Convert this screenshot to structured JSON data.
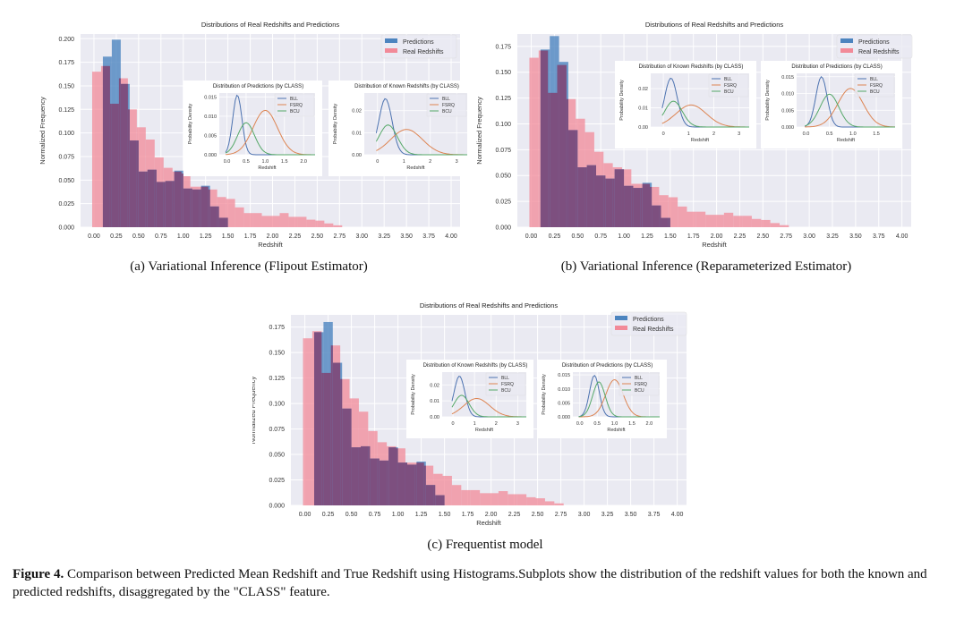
{
  "figure": {
    "label": "Figure 4.",
    "caption": "Comparison between Predicted Mean Redshift and True Redshift using Histograms.Subplots show the distribution of the redshift values for both the known and predicted redshifts, disaggregated by the \"CLASS\" feature."
  },
  "colors": {
    "predictions": "#4c84bf",
    "real": "#f28a98",
    "overlap": "#7d4f7f",
    "bll": "#4c72b0",
    "fsrq": "#dd8452",
    "bcu": "#55a868",
    "axes_bg": "#eaeaf2"
  },
  "chart_data": [
    {
      "type": "bar",
      "subcaption": "(a) Variational Inference (Flipout Estimator)",
      "title": "Distributions of Real Redshifts and Predictions",
      "xlabel": "Redshift",
      "ylabel": "Normalized Frequency",
      "xlim": [
        -0.15,
        4.1
      ],
      "ylim": [
        0,
        0.205
      ],
      "xticks": [
        "0.00",
        "0.25",
        "0.50",
        "0.75",
        "1.00",
        "1.25",
        "1.50",
        "1.75",
        "2.00",
        "2.25",
        "2.50",
        "2.75",
        "3.00",
        "3.25",
        "3.50",
        "3.75",
        "4.00"
      ],
      "yticks": [
        "0.000",
        "0.025",
        "0.050",
        "0.075",
        "0.100",
        "0.125",
        "0.150",
        "0.175",
        "0.200"
      ],
      "legend": [
        "Predictions",
        "Real Redshifts"
      ],
      "legend_position": "top-right",
      "bin_width": 0.1,
      "predictions": {
        "start": 0.0,
        "values": [
          0.0,
          0.181,
          0.199,
          0.152,
          0.092,
          0.059,
          0.061,
          0.048,
          0.049,
          0.06,
          0.041,
          0.04,
          0.044,
          0.022,
          0.01
        ]
      },
      "real": {
        "start": -0.02,
        "values": [
          0.165,
          0.171,
          0.131,
          0.158,
          0.125,
          0.106,
          0.093,
          0.074,
          0.063,
          0.059,
          0.057,
          0.043,
          0.043,
          0.04,
          0.032,
          0.03,
          0.021,
          0.015,
          0.015,
          0.012,
          0.012,
          0.015,
          0.011,
          0.011,
          0.008,
          0.007,
          0.004,
          0.002
        ]
      },
      "insets": [
        {
          "title": "Distribution of Predictions (by CLASS)",
          "xlabel": "Redshift",
          "ylabel": "Probability Density",
          "xlim": [
            -0.2,
            2.3
          ],
          "ylim": [
            0,
            0.016
          ],
          "xticks": [
            "0.0",
            "0.5",
            "1.0",
            "1.5",
            "2.0"
          ],
          "yticks": [
            "0.000",
            "0.005",
            "0.010",
            "0.015"
          ],
          "legend": [
            "BLL",
            "FSRQ",
            "BCU"
          ],
          "curves": [
            {
              "mu": 0.27,
              "sigma": 0.12,
              "peak": 0.0155
            },
            {
              "mu": 1.0,
              "sigma": 0.32,
              "peak": 0.0115
            },
            {
              "mu": 0.5,
              "sigma": 0.22,
              "peak": 0.0083
            }
          ]
        },
        {
          "title": "Distribution of Known Redshifts (by CLASS)",
          "xlabel": "Redshift",
          "ylabel": "Probability Density",
          "xlim": [
            -0.5,
            3.4
          ],
          "ylim": [
            0,
            0.028
          ],
          "xticks": [
            "0",
            "1",
            "2",
            "3"
          ],
          "yticks": [
            "0.00",
            "0.01",
            "0.02"
          ],
          "legend": [
            "BLL",
            "FSRQ",
            "BCU"
          ],
          "curves": [
            {
              "mu": 0.3,
              "sigma": 0.25,
              "peak": 0.0255
            },
            {
              "mu": 1.1,
              "sigma": 0.6,
              "peak": 0.0115
            },
            {
              "mu": 0.4,
              "sigma": 0.35,
              "peak": 0.0135
            }
          ]
        }
      ]
    },
    {
      "type": "bar",
      "subcaption": "(b) Variational Inference (Reparameterized Estimator)",
      "title": "Distributions of Real Redshifts and Predictions",
      "xlabel": "Redshift",
      "ylabel": "Normalized Frequency",
      "xlim": [
        -0.15,
        4.1
      ],
      "ylim": [
        0,
        0.187
      ],
      "xticks": [
        "0.00",
        "0.25",
        "0.50",
        "0.75",
        "1.00",
        "1.25",
        "1.50",
        "1.75",
        "2.00",
        "2.25",
        "2.50",
        "2.75",
        "3.00",
        "3.25",
        "3.50",
        "3.75",
        "4.00"
      ],
      "yticks": [
        "0.000",
        "0.025",
        "0.050",
        "0.075",
        "0.100",
        "0.125",
        "0.150",
        "0.175"
      ],
      "legend": [
        "Predictions",
        "Real Redshifts"
      ],
      "legend_position": "top-right",
      "bin_width": 0.1,
      "predictions": {
        "start": 0.0,
        "values": [
          0.0,
          0.172,
          0.185,
          0.16,
          0.094,
          0.058,
          0.06,
          0.05,
          0.047,
          0.056,
          0.04,
          0.038,
          0.043,
          0.021,
          0.009
        ]
      },
      "real": {
        "start": -0.02,
        "values": [
          0.164,
          0.171,
          0.13,
          0.157,
          0.124,
          0.105,
          0.092,
          0.073,
          0.062,
          0.058,
          0.056,
          0.042,
          0.042,
          0.039,
          0.031,
          0.029,
          0.02,
          0.015,
          0.015,
          0.012,
          0.012,
          0.014,
          0.011,
          0.011,
          0.008,
          0.007,
          0.004,
          0.002
        ]
      },
      "insets": [
        {
          "title": "Distribution of Known Redshifts (by CLASS)",
          "xlabel": "Redshift",
          "ylabel": "Probability Density",
          "xlim": [
            -0.5,
            3.4
          ],
          "ylim": [
            0,
            0.028
          ],
          "xticks": [
            "0",
            "1",
            "2",
            "3"
          ],
          "yticks": [
            "0.00",
            "0.01",
            "0.02"
          ],
          "legend": [
            "BLL",
            "FSRQ",
            "BCU"
          ],
          "curves": [
            {
              "mu": 0.3,
              "sigma": 0.25,
              "peak": 0.0255
            },
            {
              "mu": 1.1,
              "sigma": 0.6,
              "peak": 0.0115
            },
            {
              "mu": 0.4,
              "sigma": 0.35,
              "peak": 0.0135
            }
          ]
        },
        {
          "title": "Distribution of Predictions (by CLASS)",
          "xlabel": "Redshift",
          "ylabel": "Probability Density",
          "xlim": [
            -0.2,
            1.9
          ],
          "ylim": [
            0,
            0.016
          ],
          "xticks": [
            "0.0",
            "0.5",
            "1.0",
            "1.5"
          ],
          "yticks": [
            "0.000",
            "0.005",
            "0.010",
            "0.015"
          ],
          "legend": [
            "BLL",
            "FSRQ",
            "BCU"
          ],
          "curves": [
            {
              "mu": 0.33,
              "sigma": 0.12,
              "peak": 0.015
            },
            {
              "mu": 0.95,
              "sigma": 0.27,
              "peak": 0.0115
            },
            {
              "mu": 0.5,
              "sigma": 0.2,
              "peak": 0.0098
            }
          ]
        }
      ]
    },
    {
      "type": "bar",
      "subcaption": "(c) Frequentist model",
      "title": "Distributions of Real Redshifts and Predictions",
      "xlabel": "Redshift",
      "ylabel": "Normalized Frequency",
      "xlim": [
        -0.15,
        4.1
      ],
      "ylim": [
        0,
        0.187
      ],
      "xticks": [
        "0.00",
        "0.25",
        "0.50",
        "0.75",
        "1.00",
        "1.25",
        "1.50",
        "1.75",
        "2.00",
        "2.25",
        "2.50",
        "2.75",
        "3.00",
        "3.25",
        "3.50",
        "3.75",
        "4.00"
      ],
      "yticks": [
        "0.000",
        "0.025",
        "0.050",
        "0.075",
        "0.100",
        "0.125",
        "0.150",
        "0.175"
      ],
      "legend": [
        "Predictions",
        "Real Redshifts"
      ],
      "legend_position": "top-right",
      "bin_width": 0.1,
      "predictions": {
        "start": 0.0,
        "values": [
          0.0,
          0.17,
          0.18,
          0.14,
          0.095,
          0.057,
          0.058,
          0.046,
          0.044,
          0.057,
          0.042,
          0.04,
          0.043,
          0.02,
          0.01
        ]
      },
      "real": {
        "start": -0.02,
        "values": [
          0.164,
          0.171,
          0.13,
          0.157,
          0.124,
          0.105,
          0.092,
          0.073,
          0.062,
          0.058,
          0.056,
          0.042,
          0.042,
          0.039,
          0.031,
          0.029,
          0.02,
          0.015,
          0.015,
          0.012,
          0.012,
          0.014,
          0.011,
          0.011,
          0.008,
          0.007,
          0.004,
          0.002
        ]
      },
      "insets": [
        {
          "title": "Distribution of Known Redshifts (by CLASS)",
          "xlabel": "Redshift",
          "ylabel": "Probability Density",
          "xlim": [
            -0.5,
            3.4
          ],
          "ylim": [
            0,
            0.028
          ],
          "xticks": [
            "0",
            "1",
            "2",
            "3"
          ],
          "yticks": [
            "0.00",
            "0.01",
            "0.02"
          ],
          "legend": [
            "BLL",
            "FSRQ",
            "BCU"
          ],
          "curves": [
            {
              "mu": 0.3,
              "sigma": 0.25,
              "peak": 0.0255
            },
            {
              "mu": 1.1,
              "sigma": 0.6,
              "peak": 0.0115
            },
            {
              "mu": 0.4,
              "sigma": 0.35,
              "peak": 0.0135
            }
          ]
        },
        {
          "title": "Distribution of Predictions (by CLASS)",
          "xlabel": "Redshift",
          "ylabel": "Probability Density",
          "xlim": [
            -0.2,
            2.3
          ],
          "ylim": [
            0,
            0.016
          ],
          "xticks": [
            "0.0",
            "0.5",
            "1.0",
            "1.5",
            "2.0"
          ],
          "yticks": [
            "0.000",
            "0.005",
            "0.010",
            "0.015"
          ],
          "legend": [
            "BLL",
            "FSRQ",
            "BCU"
          ],
          "curves": [
            {
              "mu": 0.42,
              "sigma": 0.14,
              "peak": 0.0148
            },
            {
              "mu": 1.0,
              "sigma": 0.25,
              "peak": 0.0133
            },
            {
              "mu": 0.55,
              "sigma": 0.18,
              "peak": 0.0125
            }
          ]
        }
      ]
    }
  ]
}
